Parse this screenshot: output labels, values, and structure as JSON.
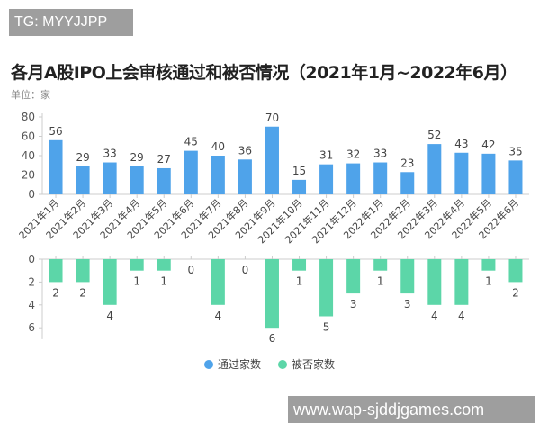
{
  "watermarks": {
    "top_left": "TG: MYYJJPP",
    "bottom_right": "www.wap-sjddjgames.com"
  },
  "chart_data": {
    "type": "bar",
    "title": "各月A股IPO上会审核通过和被否情况（2021年1月~2022年6月）",
    "subtitle": "单位：家",
    "categories": [
      "2021年1月",
      "2021年2月",
      "2021年3月",
      "2021年4月",
      "2021年5月",
      "2021年6月",
      "2021年7月",
      "2021年8月",
      "2021年9月",
      "2021年10月",
      "2021年11月",
      "2021年12月",
      "2022年1月",
      "2022年2月",
      "2022年3月",
      "2022年4月",
      "2022年5月",
      "2022年6月"
    ],
    "series": [
      {
        "name": "通过家数",
        "color": "#4fa3ea",
        "values": [
          56,
          29,
          33,
          29,
          27,
          45,
          40,
          36,
          70,
          15,
          31,
          32,
          33,
          23,
          52,
          43,
          42,
          35
        ]
      },
      {
        "name": "被否家数",
        "color": "#5cd6a8",
        "values": [
          2,
          2,
          4,
          1,
          1,
          0,
          4,
          0,
          6,
          1,
          5,
          3,
          1,
          3,
          4,
          4,
          1,
          2
        ]
      }
    ],
    "top_axis": {
      "ylim": [
        0,
        80
      ],
      "ticks": [
        0,
        20,
        40,
        60,
        80
      ]
    },
    "bottom_axis": {
      "ylim": [
        0,
        7
      ],
      "ticks": [
        0,
        2,
        4,
        6
      ],
      "inverted": true
    },
    "legend": "bottom-center",
    "grid": false
  }
}
